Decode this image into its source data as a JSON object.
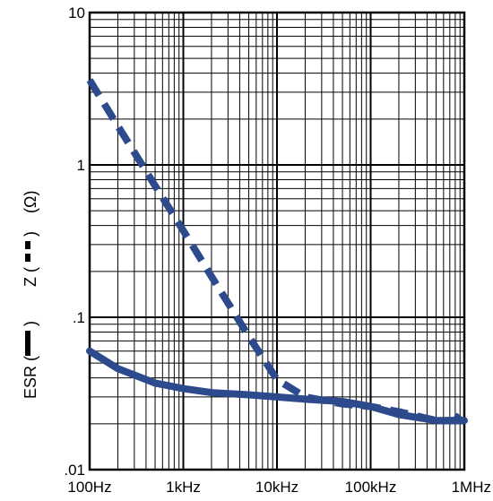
{
  "chart_data": {
    "type": "line",
    "x_scale": "log",
    "y_scale": "log",
    "xlim": [
      100,
      1000000
    ],
    "ylim": [
      0.01,
      10
    ],
    "grid": true,
    "x_ticks": [
      {
        "value": 100,
        "label": "100Hz"
      },
      {
        "value": 1000,
        "label": "1kHz"
      },
      {
        "value": 10000,
        "label": "10kHz"
      },
      {
        "value": 100000,
        "label": "100kHz"
      },
      {
        "value": 1000000,
        "label": "1MHz"
      }
    ],
    "y_ticks": [
      {
        "value": 0.01,
        "label": ".01"
      },
      {
        "value": 0.1,
        "label": ".1"
      },
      {
        "value": 1,
        "label": "1"
      },
      {
        "value": 10,
        "label": "10"
      }
    ],
    "ylabel": {
      "esr": "ESR (",
      "esr_close": ")",
      "z": "Z (",
      "z_close": ")",
      "unit": "(Ω)"
    },
    "line_color": "#2d4a8c",
    "series": [
      {
        "name": "Z",
        "style": "dashed",
        "x": [
          100,
          200,
          500,
          1000,
          2000,
          5000,
          10000,
          20000,
          50000,
          100000,
          200000,
          500000,
          800000,
          1000000
        ],
        "y": [
          3.6,
          1.8,
          0.73,
          0.37,
          0.185,
          0.075,
          0.039,
          0.03,
          0.027,
          0.026,
          0.024,
          0.021,
          0.021,
          0.025
        ]
      },
      {
        "name": "ESR",
        "style": "solid",
        "x": [
          100,
          200,
          500,
          1000,
          2000,
          5000,
          10000,
          20000,
          50000,
          100000,
          200000,
          500000,
          1000000
        ],
        "y": [
          0.06,
          0.046,
          0.037,
          0.034,
          0.032,
          0.031,
          0.03,
          0.029,
          0.028,
          0.026,
          0.023,
          0.021,
          0.021
        ]
      }
    ]
  }
}
